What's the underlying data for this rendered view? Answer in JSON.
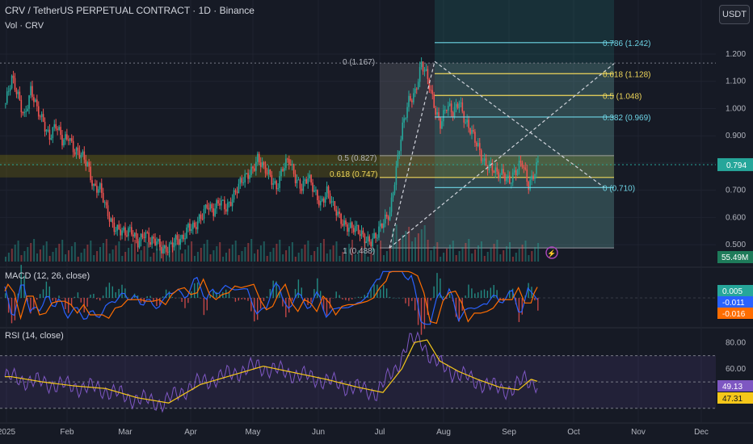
{
  "header": {
    "title": "CRV / TetherUS PERPETUAL CONTRACT · 1D · Binance",
    "volume_label": "Vol · CRV",
    "currency_button": "USDT"
  },
  "panes": {
    "macd_label": "MACD (12, 26, close)",
    "rsi_label": "RSI (14, close)"
  },
  "colors": {
    "background": "#161a25",
    "up": "#26a69a",
    "down": "#ef5350",
    "macd_line": "#2962ff",
    "signal_line": "#ff6d00",
    "rsi_line": "#7e57c2",
    "rsi_ma": "#f5c71a",
    "fib_yellow": "#f0d75a",
    "fib_cyan": "#6ed5e6"
  },
  "chart_data": {
    "type": "candlestick",
    "symbol": "CRV/USDT",
    "price_axis": {
      "ticks": [
        0.5,
        0.6,
        0.7,
        0.8,
        0.9,
        1.0,
        1.1,
        1.2
      ],
      "tick_labels": [
        "0.500",
        "0.600",
        "0.700",
        "0.800",
        "0.900",
        "1.000",
        "1.100",
        "1.200"
      ],
      "range": [
        0.45,
        1.28
      ]
    },
    "time_axis": {
      "labels": [
        "2025",
        "Feb",
        "Mar",
        "Apr",
        "May",
        "Jun",
        "Jul",
        "Aug",
        "Sep",
        "Oct",
        "Nov",
        "Dec"
      ]
    },
    "price_path": [
      [
        0,
        1.02
      ],
      [
        4,
        1.1
      ],
      [
        8,
        1.05
      ],
      [
        12,
        0.98
      ],
      [
        16,
        1.06
      ],
      [
        20,
        0.99
      ],
      [
        24,
        0.96
      ],
      [
        28,
        0.9
      ],
      [
        32,
        0.93
      ],
      [
        36,
        0.88
      ],
      [
        40,
        0.91
      ],
      [
        44,
        0.84
      ],
      [
        48,
        0.82
      ],
      [
        52,
        0.8
      ],
      [
        56,
        0.72
      ],
      [
        60,
        0.7
      ],
      [
        64,
        0.62
      ],
      [
        68,
        0.58
      ],
      [
        72,
        0.56
      ],
      [
        76,
        0.53
      ],
      [
        80,
        0.55
      ],
      [
        84,
        0.52
      ],
      [
        88,
        0.54
      ],
      [
        92,
        0.5
      ],
      [
        96,
        0.52
      ],
      [
        100,
        0.49
      ],
      [
        104,
        0.48
      ],
      [
        108,
        0.51
      ],
      [
        112,
        0.53
      ],
      [
        116,
        0.57
      ],
      [
        120,
        0.55
      ],
      [
        124,
        0.6
      ],
      [
        128,
        0.66
      ],
      [
        132,
        0.62
      ],
      [
        136,
        0.65
      ],
      [
        140,
        0.64
      ],
      [
        144,
        0.68
      ],
      [
        148,
        0.71
      ],
      [
        152,
        0.74
      ],
      [
        156,
        0.78
      ],
      [
        160,
        0.82
      ],
      [
        164,
        0.77
      ],
      [
        168,
        0.75
      ],
      [
        172,
        0.72
      ],
      [
        176,
        0.78
      ],
      [
        180,
        0.8
      ],
      [
        184,
        0.75
      ],
      [
        188,
        0.72
      ],
      [
        192,
        0.74
      ],
      [
        196,
        0.69
      ],
      [
        200,
        0.66
      ],
      [
        204,
        0.7
      ],
      [
        208,
        0.63
      ],
      [
        212,
        0.6
      ],
      [
        216,
        0.58
      ],
      [
        220,
        0.56
      ],
      [
        224,
        0.54
      ],
      [
        228,
        0.53
      ],
      [
        232,
        0.52
      ],
      [
        236,
        0.53
      ],
      [
        240,
        0.58
      ],
      [
        244,
        0.63
      ],
      [
        248,
        0.78
      ],
      [
        252,
        0.92
      ],
      [
        256,
        1.03
      ],
      [
        260,
        1.07
      ],
      [
        264,
        1.16
      ],
      [
        268,
        1.1
      ],
      [
        272,
        1.02
      ],
      [
        276,
        0.95
      ],
      [
        280,
        1.0
      ],
      [
        284,
        0.98
      ],
      [
        288,
        1.04
      ],
      [
        292,
        0.95
      ],
      [
        296,
        0.9
      ],
      [
        300,
        0.86
      ],
      [
        304,
        0.81
      ],
      [
        308,
        0.78
      ],
      [
        312,
        0.75
      ],
      [
        316,
        0.77
      ],
      [
        320,
        0.74
      ],
      [
        324,
        0.76
      ],
      [
        328,
        0.8
      ],
      [
        332,
        0.73
      ],
      [
        336,
        0.77
      ],
      [
        338,
        0.794
      ]
    ],
    "current_price": 0.794,
    "current_price_label": "0.794",
    "volume": {
      "current_label": "55.49M"
    },
    "fibonacci_retracement": [
      {
        "level": "0",
        "price": 1.167,
        "label": "0 (1.167)"
      },
      {
        "level": "0.5",
        "price": 0.827,
        "label": "0.5 (0.827)"
      },
      {
        "level": "0.618",
        "price": 0.747,
        "label": "0.618 (0.747)"
      },
      {
        "level": "1",
        "price": 0.488,
        "label": "1 (0.488)"
      }
    ],
    "fibonacci_extension": [
      {
        "level": "0.786",
        "price": 1.242,
        "label": "0.786 (1.242)"
      },
      {
        "level": "0.618",
        "price": 1.128,
        "label": "0.618 (1.128)"
      },
      {
        "level": "0.5",
        "price": 1.048,
        "label": "0.5 (1.048)"
      },
      {
        "level": "0.382",
        "price": 0.969,
        "label": "0.382 (0.969)"
      },
      {
        "level": "0",
        "price": 0.71,
        "label": "0 (0.710)"
      }
    ],
    "macd": {
      "range": [
        -0.03,
        0.03
      ],
      "values": {
        "histogram": 0.005,
        "macd": -0.011,
        "signal": -0.016
      },
      "labels": [
        "0.005",
        "-0.011",
        "-0.016"
      ]
    },
    "rsi": {
      "range": [
        20,
        90
      ],
      "ticks": [
        80,
        60
      ],
      "tick_labels": [
        "80.00",
        "60.00"
      ],
      "values": {
        "rsi": 49.13,
        "ma": 47.31
      },
      "labels": [
        "49.13",
        "47.31"
      ],
      "path": [
        [
          0,
          54
        ],
        [
          20,
          50
        ],
        [
          40,
          47
        ],
        [
          60,
          45
        ],
        [
          80,
          38
        ],
        [
          100,
          34
        ],
        [
          120,
          48
        ],
        [
          140,
          55
        ],
        [
          160,
          62
        ],
        [
          180,
          57
        ],
        [
          200,
          52
        ],
        [
          220,
          46
        ],
        [
          236,
          42
        ],
        [
          248,
          60
        ],
        [
          256,
          80
        ],
        [
          264,
          82
        ],
        [
          272,
          66
        ],
        [
          284,
          58
        ],
        [
          296,
          52
        ],
        [
          310,
          46
        ],
        [
          322,
          44
        ],
        [
          330,
          52
        ],
        [
          338,
          49
        ]
      ]
    }
  }
}
